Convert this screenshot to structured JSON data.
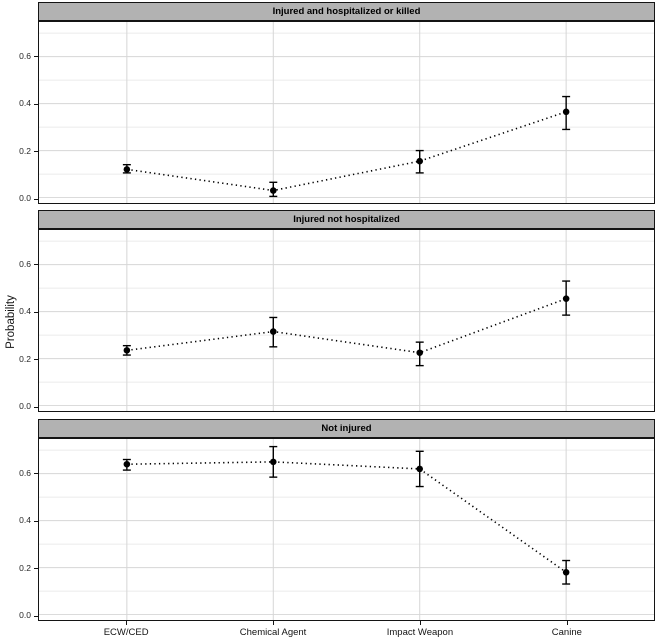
{
  "chart_data": {
    "type": "line",
    "subtype": "point-estimates-with-error-bars",
    "title": "",
    "xlabel": "",
    "ylabel": "Probability",
    "categories": [
      "ECW/CED",
      "Chemical Agent",
      "Impact Weapon",
      "Canine"
    ],
    "y_ticks": [
      0.0,
      0.2,
      0.4,
      0.6
    ],
    "y_tick_labels": [
      "0.0",
      "0.2",
      "0.4",
      "0.6"
    ],
    "y_minor": [
      0.1,
      0.3,
      0.5,
      0.7
    ],
    "ylim": [
      -0.023,
      0.747
    ],
    "grid": "major+minor horizontal, major vertical at categories",
    "legend": "none",
    "line_style": "dotted",
    "facets": [
      {
        "title": "Injured and hospitalized or killed",
        "series": {
          "values": [
            0.12,
            0.03,
            0.155,
            0.365
          ],
          "ci_low": [
            0.105,
            0.005,
            0.105,
            0.29
          ],
          "ci_high": [
            0.14,
            0.065,
            0.2,
            0.43
          ]
        }
      },
      {
        "title": "Injured not hospitalized",
        "series": {
          "values": [
            0.235,
            0.315,
            0.225,
            0.455
          ],
          "ci_low": [
            0.215,
            0.25,
            0.17,
            0.385
          ],
          "ci_high": [
            0.255,
            0.375,
            0.27,
            0.53
          ]
        }
      },
      {
        "title": "Not injured",
        "series": {
          "values": [
            0.64,
            0.65,
            0.62,
            0.18
          ],
          "ci_low": [
            0.615,
            0.585,
            0.545,
            0.13
          ],
          "ci_high": [
            0.66,
            0.715,
            0.695,
            0.23
          ]
        }
      }
    ],
    "colors": {
      "strip_fill": "#b2b2b2",
      "strip_border": "#141414",
      "panel_border": "#141414",
      "grid_major": "#d6d6d6",
      "grid_minor": "#ebebeb",
      "data": "#000000",
      "tick_text": "#262626"
    }
  }
}
